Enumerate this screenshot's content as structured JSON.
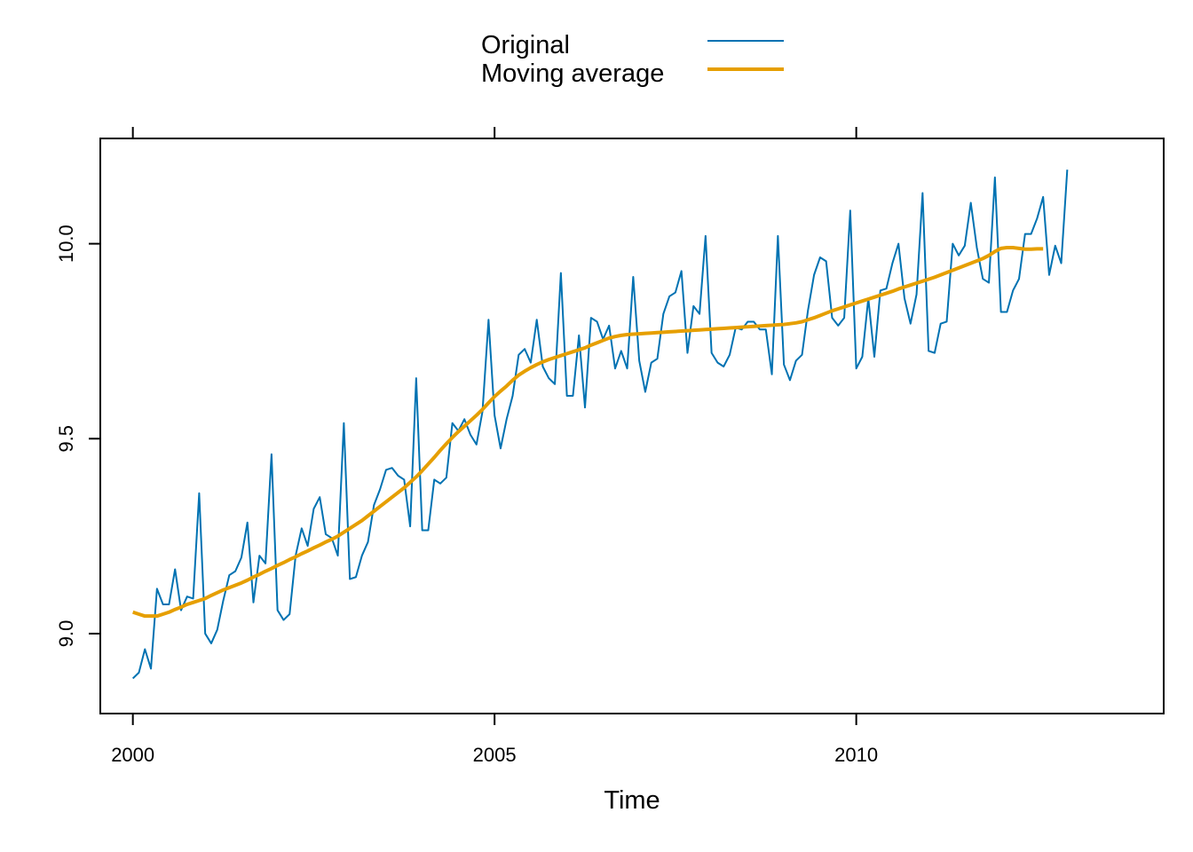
{
  "chart_data": {
    "type": "line",
    "title": "",
    "xlabel": "Time",
    "ylabel": "",
    "xlim": [
      1999.55,
      2014.25
    ],
    "ylim": [
      8.795,
      10.27
    ],
    "xticks": [
      2000,
      2005,
      2010
    ],
    "xtick_labels": [
      "2000",
      "2005",
      "2010"
    ],
    "yticks": [
      9.0,
      9.5,
      10.0
    ],
    "ytick_labels": [
      "9.0",
      "9.5",
      "10.0"
    ],
    "grid": false,
    "legend": "top",
    "start": 2000,
    "frequency": 12,
    "series": [
      {
        "name": "Original",
        "color": "#0072B2",
        "values": [
          8.885,
          8.9,
          8.96,
          8.91,
          9.115,
          9.075,
          9.075,
          9.165,
          9.06,
          9.095,
          9.09,
          9.36,
          9.0,
          8.975,
          9.01,
          9.085,
          9.15,
          9.16,
          9.195,
          9.285,
          9.08,
          9.2,
          9.18,
          9.46,
          9.06,
          9.035,
          9.05,
          9.2,
          9.27,
          9.225,
          9.32,
          9.35,
          9.255,
          9.245,
          9.2,
          9.54,
          9.14,
          9.145,
          9.2,
          9.235,
          9.33,
          9.37,
          9.42,
          9.425,
          9.405,
          9.395,
          9.275,
          9.655,
          9.265,
          9.265,
          9.395,
          9.385,
          9.4,
          9.54,
          9.52,
          9.55,
          9.51,
          9.485,
          9.57,
          9.805,
          9.56,
          9.475,
          9.55,
          9.61,
          9.715,
          9.73,
          9.695,
          9.805,
          9.685,
          9.655,
          9.64,
          9.925,
          9.61,
          9.61,
          9.765,
          9.58,
          9.81,
          9.8,
          9.755,
          9.79,
          9.68,
          9.725,
          9.68,
          9.915,
          9.7,
          9.62,
          9.695,
          9.705,
          9.82,
          9.865,
          9.875,
          9.93,
          9.72,
          9.84,
          9.82,
          10.02,
          9.72,
          9.695,
          9.685,
          9.715,
          9.785,
          9.78,
          9.8,
          9.8,
          9.78,
          9.78,
          9.665,
          10.02,
          9.69,
          9.65,
          9.7,
          9.715,
          9.83,
          9.92,
          9.965,
          9.955,
          9.81,
          9.79,
          9.81,
          10.085,
          9.68,
          9.71,
          9.86,
          9.71,
          9.88,
          9.885,
          9.95,
          10.0,
          9.86,
          9.795,
          9.87,
          10.13,
          9.725,
          9.72,
          9.795,
          9.8,
          10.0,
          9.97,
          9.995,
          10.105,
          9.99,
          9.91,
          9.9,
          10.17,
          9.825,
          9.825,
          9.88,
          9.91,
          10.025,
          10.025,
          10.065,
          10.12,
          9.92,
          9.995,
          9.95,
          10.19
        ]
      },
      {
        "name": "Moving average",
        "color": "#E69F00",
        "values": [
          9.055,
          9.05,
          9.045,
          9.045,
          9.045,
          9.05,
          9.055,
          9.062,
          9.068,
          9.075,
          9.08,
          9.085,
          9.09,
          9.098,
          9.105,
          9.112,
          9.118,
          9.124,
          9.13,
          9.137,
          9.145,
          9.152,
          9.16,
          9.167,
          9.175,
          9.182,
          9.19,
          9.197,
          9.205,
          9.212,
          9.22,
          9.227,
          9.235,
          9.242,
          9.25,
          9.26,
          9.27,
          9.28,
          9.29,
          9.302,
          9.314,
          9.326,
          9.338,
          9.35,
          9.362,
          9.374,
          9.388,
          9.402,
          9.418,
          9.435,
          9.452,
          9.47,
          9.487,
          9.503,
          9.518,
          9.532,
          9.546,
          9.56,
          9.575,
          9.592,
          9.608,
          9.622,
          9.635,
          9.65,
          9.663,
          9.673,
          9.682,
          9.69,
          9.697,
          9.703,
          9.708,
          9.713,
          9.718,
          9.723,
          9.728,
          9.733,
          9.74,
          9.746,
          9.752,
          9.758,
          9.762,
          9.765,
          9.767,
          9.768,
          9.769,
          9.77,
          9.771,
          9.772,
          9.773,
          9.774,
          9.775,
          9.776,
          9.777,
          9.778,
          9.779,
          9.78,
          9.781,
          9.782,
          9.783,
          9.784,
          9.785,
          9.786,
          9.787,
          9.788,
          9.789,
          9.79,
          9.791,
          9.792,
          9.793,
          9.795,
          9.797,
          9.8,
          9.805,
          9.81,
          9.816,
          9.822,
          9.828,
          9.833,
          9.838,
          9.843,
          9.848,
          9.853,
          9.858,
          9.863,
          9.868,
          9.873,
          9.878,
          9.884,
          9.889,
          9.894,
          9.899,
          9.904,
          9.909,
          9.914,
          9.92,
          9.926,
          9.932,
          9.938,
          9.944,
          9.95,
          9.956,
          9.962,
          9.97,
          9.98,
          9.988,
          9.99,
          9.99,
          9.988,
          9.986,
          9.986,
          9.987,
          9.987
        ]
      }
    ]
  }
}
